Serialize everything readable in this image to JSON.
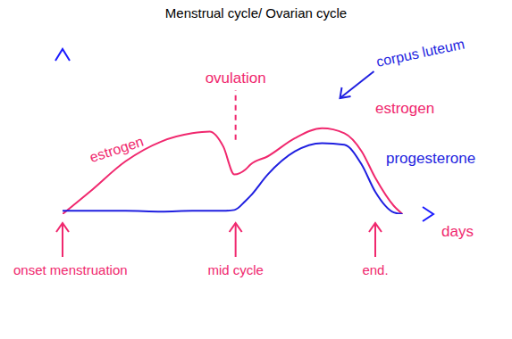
{
  "chart_data": {
    "type": "line",
    "title": "Menstrual cycle/ Ovarian cycle",
    "x_label": "days",
    "x": [
      0,
      2.2,
      5.1,
      8,
      10.5,
      11.9,
      13,
      13.9,
      14.8,
      15.2,
      16.6,
      18.8,
      21,
      22.8,
      24.2,
      25.3,
      26.8,
      27.5
    ],
    "series": [
      {
        "name": "estrogen",
        "color": "#f0286e",
        "values": [
          0,
          1.35,
          3.2,
          4.4,
          4.9,
          5.0,
          4.1,
          2.4,
          2.7,
          3.0,
          3.5,
          4.6,
          5.2,
          4.9,
          3.8,
          2.2,
          0.5,
          0
        ]
      },
      {
        "name": "progesterone",
        "color": "#1f1fe0",
        "values": [
          0.2,
          0.2,
          0.2,
          0.15,
          0.2,
          0.2,
          0.2,
          0.25,
          0.8,
          1.1,
          2.4,
          3.8,
          4.3,
          4.2,
          3.0,
          1.35,
          0.1,
          0
        ]
      }
    ],
    "xlim": [
      0,
      30
    ],
    "ylim": [
      0,
      10
    ],
    "tick_labels": false,
    "grid": false,
    "annotations": [
      {
        "text": "ovulation",
        "x": 14
      },
      {
        "text": "corpus luteum",
        "x": 21
      },
      {
        "text": "estrogen",
        "x": 7
      }
    ],
    "markers": [
      {
        "text": "onset menstruation",
        "x": 0
      },
      {
        "text": "mid cycle",
        "x": 14
      },
      {
        "text": "end.",
        "x": 25.3
      }
    ]
  }
}
